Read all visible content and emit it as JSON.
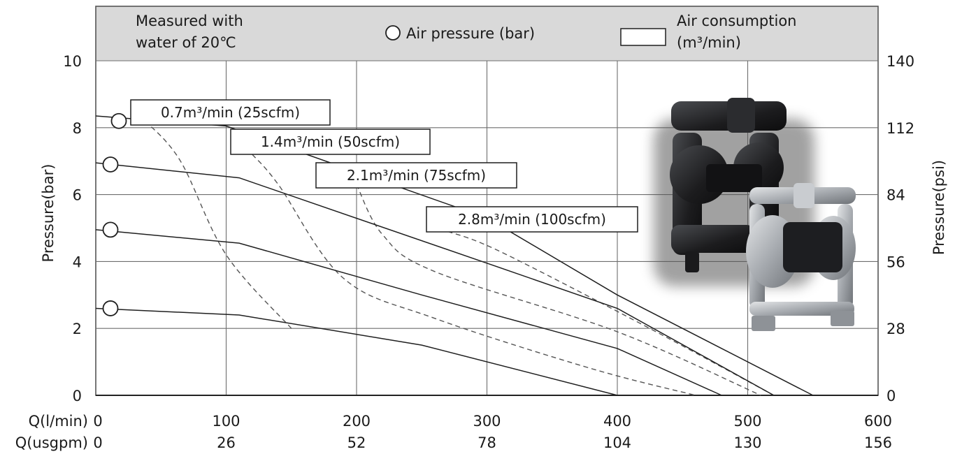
{
  "chart_data": {
    "type": "line",
    "header": {
      "note_line1": "Measured with",
      "note_line2": "water of 20℃",
      "legend_circle_label": "Air pressure (bar)",
      "legend_box_label_line1": "Air consumption",
      "legend_box_label_line2": "(m³/min)"
    },
    "xlabel_primary": "Q(l/min)",
    "xlabel_secondary": "Q(usgpm)",
    "ylabel_left": "Pressure(bar)",
    "ylabel_right": "Pressure(psi)",
    "xlim": [
      0,
      600
    ],
    "ylim": [
      0,
      10
    ],
    "x_ticks": [
      0,
      100,
      200,
      300,
      400,
      500,
      600
    ],
    "x_ticks_usgpm": [
      0,
      26,
      52,
      78,
      104,
      130,
      156
    ],
    "y_ticks": [
      0,
      2,
      4,
      6,
      8,
      10
    ],
    "y_ticks_psi": [
      0,
      28,
      56,
      84,
      112,
      140
    ],
    "grid": true,
    "pressure_series": [
      {
        "air_pressure_marker_y": 8.2,
        "points": [
          [
            0,
            8.35
          ],
          [
            100,
            8.05
          ],
          [
            300,
            5.3
          ],
          [
            400,
            3.0
          ],
          [
            550,
            0
          ]
        ]
      },
      {
        "air_pressure_marker_y": 6.9,
        "points": [
          [
            0,
            6.95
          ],
          [
            110,
            6.5
          ],
          [
            300,
            3.95
          ],
          [
            400,
            2.6
          ],
          [
            520,
            0
          ]
        ]
      },
      {
        "air_pressure_marker_y": 4.95,
        "points": [
          [
            0,
            4.95
          ],
          [
            110,
            4.55
          ],
          [
            250,
            3.0
          ],
          [
            400,
            1.4
          ],
          [
            480,
            0
          ]
        ]
      },
      {
        "air_pressure_marker_y": 2.6,
        "points": [
          [
            0,
            2.6
          ],
          [
            110,
            2.4
          ],
          [
            250,
            1.5
          ],
          [
            400,
            0
          ]
        ]
      }
    ],
    "consumption_curves": [
      {
        "label": "0.7m³/min (25scfm)",
        "points": [
          [
            38,
            8.2
          ],
          [
            65,
            7.0
          ],
          [
            100,
            4.2
          ],
          [
            150,
            2.0
          ]
        ]
      },
      {
        "label": "1.4m³/min (50scfm)",
        "points": [
          [
            120,
            7.2
          ],
          [
            140,
            6.3
          ],
          [
            190,
            3.5
          ],
          [
            260,
            2.3
          ],
          [
            380,
            0.8
          ],
          [
            460,
            0
          ]
        ]
      },
      {
        "label": "2.1m³/min (75scfm)",
        "points": [
          [
            200,
            6.3
          ],
          [
            220,
            4.8
          ],
          [
            260,
            3.7
          ],
          [
            400,
            1.9
          ],
          [
            510,
            0
          ]
        ]
      },
      {
        "label": "2.8m³/min (100scfm)",
        "points": [
          [
            270,
            4.9
          ],
          [
            310,
            4.3
          ],
          [
            420,
            2.1
          ],
          [
            520,
            0
          ]
        ]
      }
    ]
  },
  "colors": {
    "header_bg": "#d9d9d9",
    "grid": "#6e6e6e",
    "line": "#1f1f1f",
    "dashed": "#555555",
    "pump_black": "#1c1c1e",
    "pump_steel": "#b9bcc0"
  },
  "image": {
    "description_icon": "diaphragm-pump-photo"
  }
}
